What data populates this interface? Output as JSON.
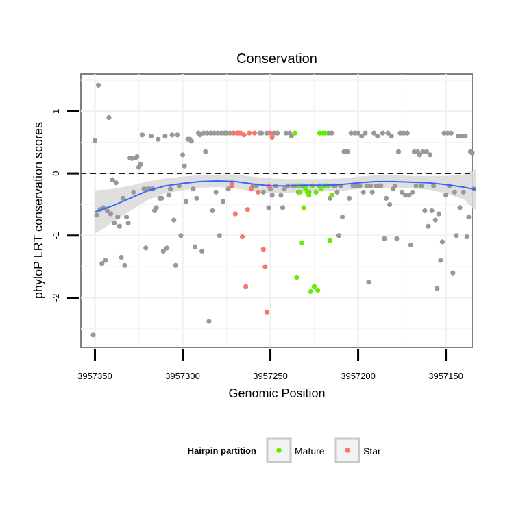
{
  "chart_data": {
    "type": "scatter",
    "title": "Conservation",
    "xlabel": "Genomic Position",
    "ylabel": "phyloP LRT conservation scores",
    "x_reversed": true,
    "xlim": [
      3957135,
      3957358
    ],
    "ylim": [
      -2.8,
      1.6
    ],
    "x_ticks": [
      3957350,
      3957300,
      3957250,
      3957200,
      3957150
    ],
    "x_tick_labels": [
      "3957350",
      "3957300",
      "3957250",
      "3957200",
      "3957150"
    ],
    "y_ticks": [
      1,
      0,
      -1,
      -2
    ],
    "y_tick_labels": [
      "1",
      "0",
      "-1",
      "-2"
    ],
    "reference_line": {
      "y": 0,
      "style": "dashed"
    },
    "grid": true,
    "legend": {
      "title": "Hairpin partition",
      "position": "bottom",
      "entries": [
        {
          "label": "Mature",
          "color": "#66ee00"
        },
        {
          "label": "Star",
          "color": "#f8766d"
        }
      ]
    },
    "colors": {
      "other": "#999999",
      "Mature": "#66ee00",
      "Star": "#f8766d",
      "smooth": "#3366ff",
      "band": "#d9d9d9"
    },
    "series": [
      {
        "name": "",
        "group": "other",
        "points": [
          [
            3957351,
            -2.6
          ],
          [
            3957350,
            0.53
          ],
          [
            3957349,
            -0.67
          ],
          [
            3957348,
            1.42
          ],
          [
            3957347,
            -0.58
          ],
          [
            3957346,
            -1.45
          ],
          [
            3957345,
            -0.55
          ],
          [
            3957344,
            -1.4
          ],
          [
            3957343,
            -0.6
          ],
          [
            3957342,
            0.9
          ],
          [
            3957341,
            -0.65
          ],
          [
            3957340,
            -0.1
          ],
          [
            3957339,
            -0.8
          ],
          [
            3957338,
            -0.15
          ],
          [
            3957337,
            -0.7
          ],
          [
            3957336,
            -0.85
          ],
          [
            3957335,
            -1.35
          ],
          [
            3957334,
            -0.4
          ],
          [
            3957333,
            -1.48
          ],
          [
            3957332,
            -0.7
          ],
          [
            3957331,
            -0.8
          ],
          [
            3957330,
            0.25
          ],
          [
            3957329,
            0.24
          ],
          [
            3957328,
            -0.3
          ],
          [
            3957327,
            0.25
          ],
          [
            3957326,
            0.27
          ],
          [
            3957325,
            0.1
          ],
          [
            3957324,
            0.15
          ],
          [
            3957323,
            0.62
          ],
          [
            3957322,
            -0.25
          ],
          [
            3957321,
            -1.2
          ],
          [
            3957320,
            -0.25
          ],
          [
            3957319,
            -0.25
          ],
          [
            3957318,
            0.6
          ],
          [
            3957317,
            -0.25
          ],
          [
            3957316,
            -0.6
          ],
          [
            3957315,
            -0.55
          ],
          [
            3957314,
            0.55
          ],
          [
            3957313,
            -0.4
          ],
          [
            3957312,
            -0.4
          ],
          [
            3957311,
            -1.25
          ],
          [
            3957310,
            0.6
          ],
          [
            3957309,
            -1.2
          ],
          [
            3957308,
            -0.35
          ],
          [
            3957307,
            -0.25
          ],
          [
            3957306,
            0.62
          ],
          [
            3957305,
            -0.75
          ],
          [
            3957304,
            -1.48
          ],
          [
            3957303,
            0.62
          ],
          [
            3957302,
            -0.2
          ],
          [
            3957301,
            -1.0
          ],
          [
            3957300,
            0.3
          ],
          [
            3957299,
            0.12
          ],
          [
            3957298,
            -0.45
          ],
          [
            3957297,
            0.55
          ],
          [
            3957296,
            0.55
          ],
          [
            3957295,
            0.52
          ],
          [
            3957294,
            -0.25
          ],
          [
            3957293,
            -1.18
          ],
          [
            3957292,
            -0.4
          ],
          [
            3957291,
            0.65
          ],
          [
            3957290,
            0.62
          ],
          [
            3957289,
            -1.25
          ],
          [
            3957288,
            0.65
          ],
          [
            3957287,
            0.35
          ],
          [
            3957286,
            0.65
          ],
          [
            3957285,
            -2.38
          ],
          [
            3957284,
            0.65
          ],
          [
            3957283,
            -0.6
          ],
          [
            3957282,
            0.65
          ],
          [
            3957281,
            -0.3
          ],
          [
            3957280,
            0.65
          ],
          [
            3957279,
            -1.0
          ],
          [
            3957278,
            0.65
          ],
          [
            3957277,
            -0.45
          ],
          [
            3957276,
            0.65
          ],
          [
            3957275,
            0.65
          ],
          [
            3957274,
            -0.25
          ],
          [
            3957273,
            0.65
          ],
          [
            3957272,
            -0.15
          ],
          [
            3957260,
            -0.2
          ],
          [
            3957258,
            -0.2
          ],
          [
            3957256,
            0.65
          ],
          [
            3957255,
            0.65
          ],
          [
            3957254,
            -0.3
          ],
          [
            3957252,
            0.65
          ],
          [
            3957251,
            -0.55
          ],
          [
            3957250,
            -0.25
          ],
          [
            3957249,
            -0.35
          ],
          [
            3957248,
            0.65
          ],
          [
            3957247,
            -0.2
          ],
          [
            3957246,
            0.65
          ],
          [
            3957244,
            -0.35
          ],
          [
            3957243,
            -0.55
          ],
          [
            3957242,
            -0.25
          ],
          [
            3957241,
            0.65
          ],
          [
            3957240,
            -0.2
          ],
          [
            3957239,
            0.65
          ],
          [
            3957238,
            0.6
          ],
          [
            3957237,
            -0.2
          ],
          [
            3957236,
            -0.2
          ],
          [
            3957235,
            -0.2
          ],
          [
            3957234,
            -0.3
          ],
          [
            3957233,
            -0.2
          ],
          [
            3957232,
            -0.2
          ],
          [
            3957230,
            -0.2
          ],
          [
            3957228,
            -0.3
          ],
          [
            3957226,
            -0.2
          ],
          [
            3957224,
            -0.3
          ],
          [
            3957222,
            -0.2
          ],
          [
            3957219,
            -0.2
          ],
          [
            3957217,
            0.65
          ],
          [
            3957216,
            -0.4
          ],
          [
            3957215,
            0.65
          ],
          [
            3957214,
            -0.2
          ],
          [
            3957213,
            -0.2
          ],
          [
            3957212,
            -0.3
          ],
          [
            3957211,
            -1.0
          ],
          [
            3957210,
            -0.2
          ],
          [
            3957209,
            -0.7
          ],
          [
            3957208,
            0.35
          ],
          [
            3957207,
            0.35
          ],
          [
            3957206,
            0.35
          ],
          [
            3957205,
            -0.4
          ],
          [
            3957204,
            0.65
          ],
          [
            3957203,
            -0.2
          ],
          [
            3957202,
            0.65
          ],
          [
            3957201,
            -0.2
          ],
          [
            3957200,
            0.65
          ],
          [
            3957199,
            -0.2
          ],
          [
            3957198,
            0.6
          ],
          [
            3957197,
            -0.3
          ],
          [
            3957196,
            0.65
          ],
          [
            3957195,
            -0.2
          ],
          [
            3957194,
            -1.75
          ],
          [
            3957193,
            -0.2
          ],
          [
            3957192,
            -0.3
          ],
          [
            3957191,
            0.65
          ],
          [
            3957190,
            -0.2
          ],
          [
            3957189,
            0.6
          ],
          [
            3957188,
            -0.2
          ],
          [
            3957187,
            -0.2
          ],
          [
            3957186,
            0.65
          ],
          [
            3957185,
            -1.05
          ],
          [
            3957184,
            -0.4
          ],
          [
            3957183,
            0.65
          ],
          [
            3957182,
            -0.5
          ],
          [
            3957181,
            0.6
          ],
          [
            3957180,
            -0.25
          ],
          [
            3957179,
            -0.2
          ],
          [
            3957178,
            -1.05
          ],
          [
            3957177,
            0.35
          ],
          [
            3957176,
            0.65
          ],
          [
            3957175,
            -0.3
          ],
          [
            3957174,
            0.65
          ],
          [
            3957173,
            -0.35
          ],
          [
            3957172,
            0.65
          ],
          [
            3957171,
            -0.35
          ],
          [
            3957170,
            -1.15
          ],
          [
            3957169,
            -0.3
          ],
          [
            3957168,
            0.35
          ],
          [
            3957167,
            -0.2
          ],
          [
            3957166,
            0.35
          ],
          [
            3957165,
            0.3
          ],
          [
            3957164,
            -0.2
          ],
          [
            3957163,
            0.35
          ],
          [
            3957162,
            -0.6
          ],
          [
            3957161,
            0.35
          ],
          [
            3957160,
            -0.85
          ],
          [
            3957159,
            0.3
          ],
          [
            3957158,
            -0.6
          ],
          [
            3957157,
            -0.2
          ],
          [
            3957156,
            -0.75
          ],
          [
            3957155,
            -1.85
          ],
          [
            3957154,
            -0.65
          ],
          [
            3957153,
            -1.4
          ],
          [
            3957152,
            -1.1
          ],
          [
            3957151,
            0.65
          ],
          [
            3957150,
            -0.35
          ],
          [
            3957149,
            0.65
          ],
          [
            3957148,
            -0.2
          ],
          [
            3957147,
            0.65
          ],
          [
            3957146,
            -1.6
          ],
          [
            3957145,
            -0.3
          ],
          [
            3957144,
            -1.0
          ],
          [
            3957143,
            0.6
          ],
          [
            3957142,
            -0.55
          ],
          [
            3957141,
            0.6
          ],
          [
            3957140,
            -0.3
          ],
          [
            3957139,
            0.6
          ],
          [
            3957138,
            -1.02
          ],
          [
            3957137,
            -0.7
          ],
          [
            3957136,
            0.35
          ],
          [
            3957135,
            0.33
          ],
          [
            3957134,
            -0.25
          ]
        ]
      },
      {
        "name": "Star",
        "group": "Star",
        "points": [
          [
            3957272,
            -0.2
          ],
          [
            3957271,
            0.65
          ],
          [
            3957270,
            -0.65
          ],
          [
            3957269,
            0.65
          ],
          [
            3957268,
            0.65
          ],
          [
            3957267,
            0.65
          ],
          [
            3957266,
            -1.02
          ],
          [
            3957265,
            0.62
          ],
          [
            3957264,
            -1.82
          ],
          [
            3957263,
            -0.58
          ],
          [
            3957262,
            0.65
          ],
          [
            3957261,
            -0.25
          ],
          [
            3957259,
            0.65
          ],
          [
            3957257,
            -0.3
          ],
          [
            3957254,
            -1.22
          ],
          [
            3957253,
            -1.5
          ],
          [
            3957252,
            -2.23
          ],
          [
            3957251,
            -0.2
          ],
          [
            3957250,
            0.65
          ],
          [
            3957249,
            0.58
          ]
        ]
      },
      {
        "name": "Mature",
        "group": "Mature",
        "points": [
          [
            3957236,
            0.65
          ],
          [
            3957235,
            -1.67
          ],
          [
            3957234,
            -0.2
          ],
          [
            3957233,
            -0.3
          ],
          [
            3957232,
            -1.12
          ],
          [
            3957231,
            -0.55
          ],
          [
            3957230,
            -0.25
          ],
          [
            3957229,
            -0.3
          ],
          [
            3957228,
            -0.35
          ],
          [
            3957227,
            -1.9
          ],
          [
            3957226,
            -0.2
          ],
          [
            3957225,
            -1.82
          ],
          [
            3957224,
            -0.3
          ],
          [
            3957223,
            -1.88
          ],
          [
            3957222,
            0.65
          ],
          [
            3957221,
            -0.25
          ],
          [
            3957220,
            0.65
          ],
          [
            3957219,
            0.65
          ],
          [
            3957218,
            -0.2
          ],
          [
            3957217,
            -0.2
          ],
          [
            3957216,
            -1.08
          ],
          [
            3957215,
            -0.35
          ]
        ]
      }
    ],
    "smooth": {
      "method": "loess",
      "x": [
        3957350,
        3957340,
        3957330,
        3957320,
        3957310,
        3957300,
        3957290,
        3957280,
        3957270,
        3957260,
        3957250,
        3957240,
        3957230,
        3957220,
        3957210,
        3957200,
        3957190,
        3957180,
        3957170,
        3957160,
        3957150,
        3957140,
        3957133
      ],
      "y": [
        -0.62,
        -0.52,
        -0.4,
        -0.28,
        -0.2,
        -0.16,
        -0.13,
        -0.12,
        -0.13,
        -0.17,
        -0.2,
        -0.2,
        -0.19,
        -0.19,
        -0.18,
        -0.15,
        -0.13,
        -0.13,
        -0.14,
        -0.15,
        -0.18,
        -0.22,
        -0.26
      ],
      "band_half_width": [
        0.35,
        0.27,
        0.2,
        0.15,
        0.12,
        0.11,
        0.1,
        0.1,
        0.11,
        0.12,
        0.12,
        0.11,
        0.1,
        0.1,
        0.1,
        0.1,
        0.1,
        0.1,
        0.1,
        0.11,
        0.14,
        0.2,
        0.33
      ]
    }
  }
}
